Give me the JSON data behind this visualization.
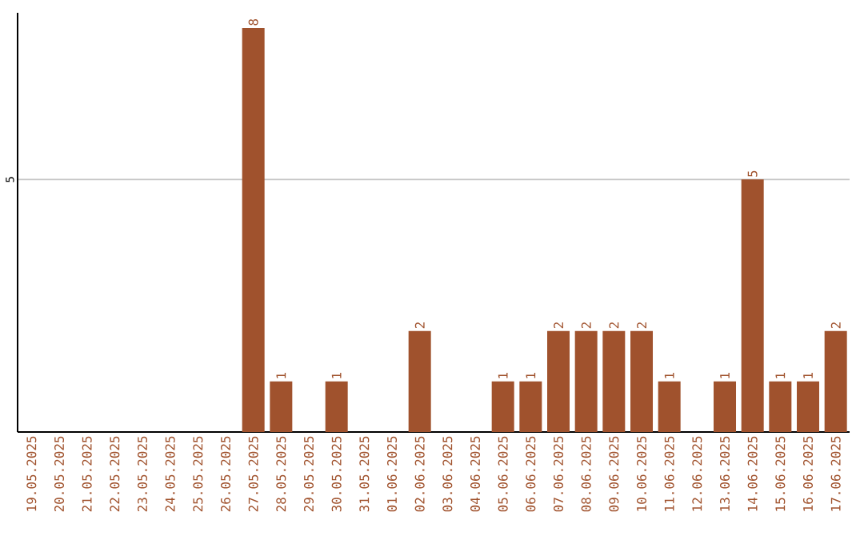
{
  "chart_data": {
    "type": "bar",
    "categories": [
      "19.05.2025",
      "20.05.2025",
      "21.05.2025",
      "22.05.2025",
      "23.05.2025",
      "24.05.2025",
      "25.05.2025",
      "26.05.2025",
      "27.05.2025",
      "28.05.2025",
      "29.05.2025",
      "30.05.2025",
      "31.05.2025",
      "01.06.2025",
      "02.06.2025",
      "03.06.2025",
      "04.06.2025",
      "05.06.2025",
      "06.06.2025",
      "07.06.2025",
      "08.06.2025",
      "09.06.2025",
      "10.06.2025",
      "11.06.2025",
      "12.06.2025",
      "13.06.2025",
      "14.06.2025",
      "15.06.2025",
      "16.06.2025",
      "17.06.2025"
    ],
    "values": [
      0,
      0,
      0,
      0,
      0,
      0,
      0,
      0,
      8,
      1,
      0,
      1,
      0,
      0,
      2,
      0,
      0,
      1,
      1,
      2,
      2,
      2,
      2,
      1,
      0,
      1,
      5,
      1,
      1,
      2
    ],
    "value_labels": [
      null,
      null,
      null,
      null,
      null,
      null,
      null,
      null,
      "8",
      "1",
      null,
      "1",
      null,
      null,
      "2",
      null,
      null,
      "1",
      "1",
      "2",
      "2",
      "2",
      "2",
      "1",
      null,
      "1",
      "5",
      "1",
      "1",
      "2"
    ],
    "color": "#a0522d",
    "ylim": [
      0,
      8.3
    ],
    "yticks": [
      5
    ],
    "grid": "y"
  }
}
